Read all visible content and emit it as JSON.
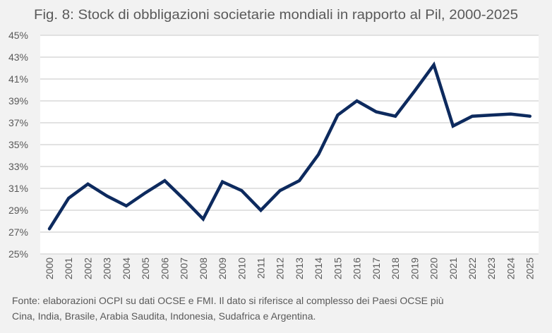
{
  "chart_data": {
    "type": "line",
    "title": "Fig. 8: Stock di obbligazioni societarie mondiali in rapporto al Pil, 2000-2025",
    "xlabel": "",
    "ylabel": "",
    "x": [
      "2000",
      "2001",
      "2002",
      "2003",
      "2004",
      "2005",
      "2006",
      "2007",
      "2008",
      "2009",
      "2010",
      "2011",
      "2012",
      "2013",
      "2014",
      "2015",
      "2016",
      "2017",
      "2018",
      "2019",
      "2020",
      "2021",
      "2022",
      "2023",
      "2024",
      "2025"
    ],
    "series": [
      {
        "name": "Stock di obbligazioni societarie / Pil",
        "color": "#0d2a5e",
        "values": [
          27.3,
          30.1,
          31.4,
          30.3,
          29.4,
          30.6,
          31.7,
          30.0,
          28.2,
          31.6,
          30.8,
          29.0,
          30.8,
          31.7,
          34.1,
          37.7,
          39.0,
          38.0,
          37.6,
          39.9,
          42.3,
          36.7,
          37.6,
          37.7,
          37.8,
          37.6
        ]
      }
    ],
    "ylim": [
      25,
      45
    ],
    "yticks": [
      25,
      27,
      29,
      31,
      33,
      35,
      37,
      39,
      41,
      43,
      45
    ],
    "ytick_labels": [
      "25%",
      "27%",
      "29%",
      "31%",
      "33%",
      "35%",
      "37%",
      "39%",
      "41%",
      "43%",
      "45%"
    ],
    "grid": true,
    "legend": "none"
  },
  "footnote": {
    "line1": "Fonte: elaborazioni OCPI su dati OCSE e FMI. Il dato si riferisce al complesso dei Paesi OCSE più",
    "line2": "Cina, India, Brasile, Arabia Saudita, Indonesia, Sudafrica e Argentina."
  },
  "colors": {
    "background": "#f2f2f2",
    "plot_background": "#ffffff",
    "gridline": "#d9d9d9",
    "text": "#595959",
    "line": "#0d2a5e"
  }
}
